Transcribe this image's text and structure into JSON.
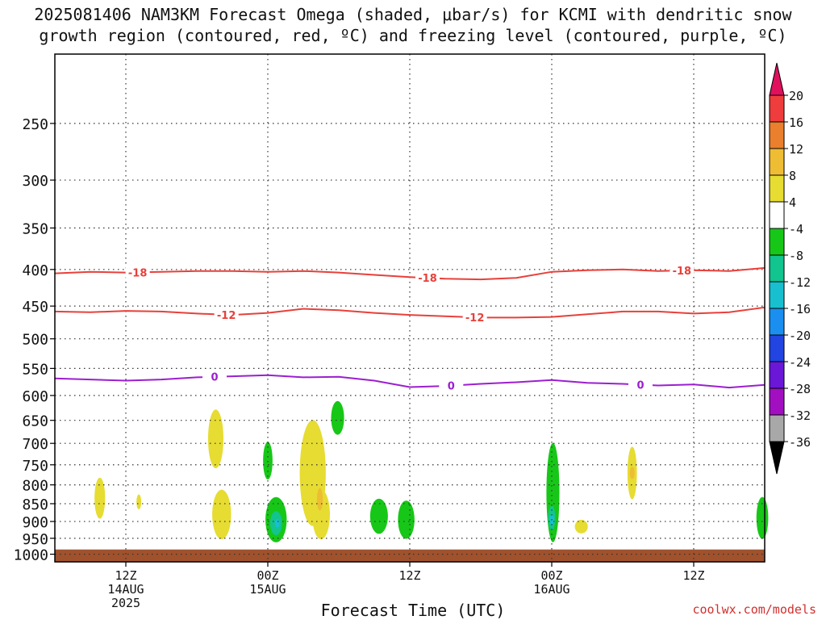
{
  "header": {
    "title_line1": "2025081406 NAM3KM Forecast Omega (shaded, μbar/s) for KCMI with dendritic snow",
    "title_line2": "growth region (contoured, red, ºC) and freezing level (contoured, purple, ºC)"
  },
  "footer": {
    "credit": "coolwx.com/models",
    "xlabel": "Forecast Time (UTC)"
  },
  "chart_data": {
    "type": "time-height cross section",
    "title": "2025081406 NAM3KM Forecast Omega (shaded, μbar/s) for KCMI with dendritic snow growth region (contoured, red, ºC) and freezing level (contoured, purple, ºC)",
    "xlabel": "Forecast Time (UTC)",
    "ylabel": "",
    "x_range_hours": [
      6,
      66
    ],
    "y_range_hpa": [
      200,
      1025
    ],
    "y_scale": "log-pressure (inverted)",
    "grid": true,
    "y_ticks": [
      250,
      300,
      350,
      400,
      450,
      500,
      550,
      600,
      650,
      700,
      750,
      800,
      850,
      900,
      950,
      1000
    ],
    "x_ticks": [
      {
        "hour": 12,
        "lines": [
          "12Z",
          "14AUG",
          "2025"
        ]
      },
      {
        "hour": 24,
        "lines": [
          "00Z",
          "15AUG"
        ]
      },
      {
        "hour": 36,
        "lines": [
          "12Z"
        ]
      },
      {
        "hour": 48,
        "lines": [
          "00Z",
          "16AUG"
        ]
      },
      {
        "hour": 60,
        "lines": [
          "12Z"
        ]
      }
    ],
    "contours": [
      {
        "name": "-18",
        "color": "#e8403a",
        "label": "-18",
        "hours": [
          6,
          9,
          12,
          15,
          18,
          21,
          24,
          27,
          30,
          33,
          36,
          39,
          42,
          45,
          48,
          51,
          54,
          57,
          60,
          63,
          66
        ],
        "hpa": [
          405,
          403,
          404,
          403,
          402,
          402,
          403,
          402,
          404,
          407,
          410,
          412,
          413,
          411,
          403,
          401,
          400,
          402,
          401,
          402,
          398
        ],
        "label_hours": [
          13,
          37.5,
          59
        ]
      },
      {
        "name": "-12",
        "color": "#e8403a",
        "label": "-12",
        "hours": [
          6,
          9,
          12,
          15,
          18,
          21,
          24,
          27,
          30,
          33,
          36,
          39,
          42,
          45,
          48,
          51,
          54,
          57,
          60,
          63,
          66
        ],
        "hpa": [
          458,
          459,
          457,
          458,
          461,
          463,
          460,
          454,
          456,
          460,
          463,
          465,
          467,
          467,
          466,
          462,
          458,
          458,
          461,
          459,
          452
        ],
        "label_hours": [
          20.5,
          41.5
        ]
      },
      {
        "name": "0",
        "color": "#9b1fd0",
        "label": "0",
        "hours": [
          6,
          9,
          12,
          15,
          18,
          21,
          24,
          27,
          30,
          33,
          36,
          39,
          42,
          45,
          48,
          51,
          54,
          57,
          60,
          63,
          66
        ],
        "hpa": [
          568,
          570,
          572,
          570,
          566,
          564,
          562,
          566,
          565,
          572,
          584,
          582,
          578,
          575,
          571,
          576,
          578,
          581,
          579,
          585,
          580
        ],
        "label_hours": [
          19.5,
          39.5,
          55.5
        ]
      }
    ],
    "omega_regions": [
      {
        "value": "4 to 8",
        "color": "#e6dc32",
        "center_hour": 9.8,
        "center_hpa": 835,
        "w_hours": 0.9,
        "h_hpa": 110
      },
      {
        "value": "4 to 8",
        "color": "#e6dc32",
        "center_hour": 13.1,
        "center_hpa": 845,
        "w_hours": 0.4,
        "h_hpa": 40
      },
      {
        "value": "4 to 8",
        "color": "#e6dc32",
        "center_hour": 19.6,
        "center_hpa": 690,
        "w_hours": 1.3,
        "h_hpa": 130
      },
      {
        "value": "4 to 8",
        "color": "#e6dc32",
        "center_hour": 20.1,
        "center_hpa": 880,
        "w_hours": 1.6,
        "h_hpa": 140
      },
      {
        "value": "4 to 8",
        "color": "#e6dc32",
        "center_hour": 27.8,
        "center_hpa": 770,
        "w_hours": 2.2,
        "h_hpa": 260
      },
      {
        "value": "4 to 8",
        "color": "#e6dc32",
        "center_hour": 28.5,
        "center_hpa": 880,
        "w_hours": 1.5,
        "h_hpa": 140
      },
      {
        "value": "4 to 8",
        "color": "#e6dc32",
        "center_hour": 54.8,
        "center_hpa": 770,
        "w_hours": 0.8,
        "h_hpa": 130
      },
      {
        "value": "4 to 8",
        "color": "#e6dc32",
        "center_hour": 50.5,
        "center_hpa": 915,
        "w_hours": 1.1,
        "h_hpa": 40
      },
      {
        "value": "8 to 12",
        "color": "#eebd33",
        "center_hour": 28.4,
        "center_hpa": 838,
        "w_hours": 0.5,
        "h_hpa": 60
      },
      {
        "value": "8 to 12",
        "color": "#eebd33",
        "center_hour": 54.8,
        "center_hpa": 770,
        "w_hours": 0.25,
        "h_hpa": 30
      },
      {
        "value": "-8 to -4",
        "color": "#17c717",
        "center_hour": 24.0,
        "center_hpa": 740,
        "w_hours": 0.8,
        "h_hpa": 90
      },
      {
        "value": "-8 to -4",
        "color": "#17c717",
        "center_hour": 29.9,
        "center_hpa": 645,
        "w_hours": 1.1,
        "h_hpa": 70
      },
      {
        "value": "-8 to -4",
        "color": "#17c717",
        "center_hour": 24.7,
        "center_hpa": 895,
        "w_hours": 1.8,
        "h_hpa": 130
      },
      {
        "value": "-8 to -4",
        "color": "#17c717",
        "center_hour": 33.4,
        "center_hpa": 885,
        "w_hours": 1.5,
        "h_hpa": 100
      },
      {
        "value": "-8 to -4",
        "color": "#17c717",
        "center_hour": 35.7,
        "center_hpa": 895,
        "w_hours": 1.4,
        "h_hpa": 110
      },
      {
        "value": "-8 to -4",
        "color": "#17c717",
        "center_hour": 48.1,
        "center_hpa": 820,
        "w_hours": 1.1,
        "h_hpa": 260
      },
      {
        "value": "-8 to -4",
        "color": "#17c717",
        "center_hour": 65.8,
        "center_hpa": 890,
        "w_hours": 1.0,
        "h_hpa": 120
      },
      {
        "value": "-12 to -8",
        "color": "#12c48e",
        "center_hour": 24.7,
        "center_hpa": 905,
        "w_hours": 1.0,
        "h_hpa": 70
      },
      {
        "value": "-12 to -8",
        "color": "#12c48e",
        "center_hour": 48.0,
        "center_hpa": 890,
        "w_hours": 0.6,
        "h_hpa": 70
      },
      {
        "value": "-16 to -12",
        "color": "#18bfcf",
        "center_hour": 24.8,
        "center_hpa": 905,
        "w_hours": 0.35,
        "h_hpa": 25
      },
      {
        "value": "-16 to -12",
        "color": "#18bfcf",
        "center_hour": 48.0,
        "center_hpa": 895,
        "w_hours": 0.25,
        "h_hpa": 30
      }
    ],
    "ground": {
      "color": "#a0522d",
      "top_hpa": 985
    },
    "legend": {
      "placement": "right",
      "labels": [
        "20",
        "16",
        "12",
        "8",
        "4",
        "-4",
        "-8",
        "-12",
        "-16",
        "-20",
        "-24",
        "-28",
        "-32",
        "-36"
      ],
      "colors": [
        "#e0105d",
        "#ef3d3d",
        "#ea7f2d",
        "#eebd33",
        "#e6dc32",
        "#ffffff",
        "#17c717",
        "#12c48e",
        "#18bfcf",
        "#1a8ff0",
        "#2244e0",
        "#6a17d8",
        "#a10fc1",
        "#a8a8a8",
        "#000000"
      ]
    }
  }
}
